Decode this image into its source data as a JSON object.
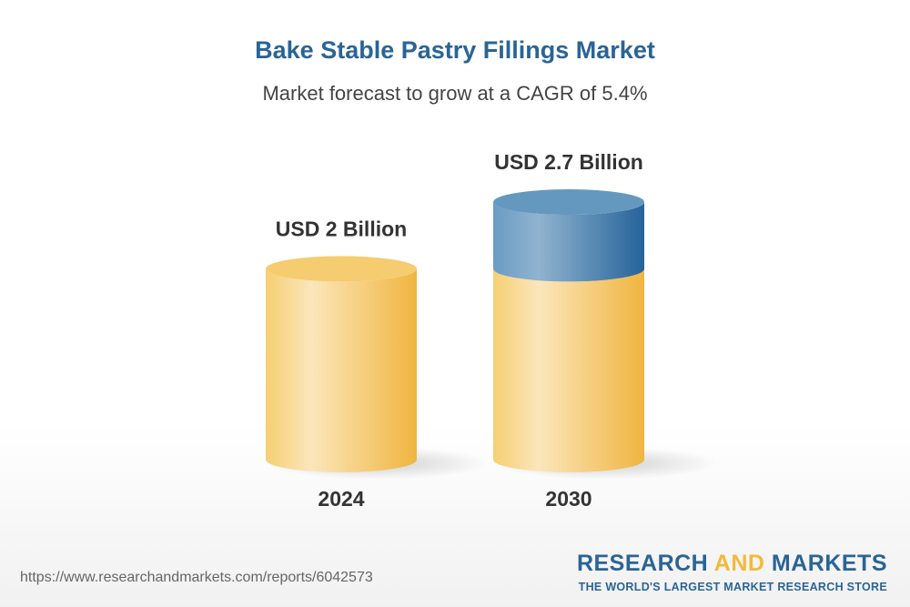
{
  "header": {
    "title": "Bake Stable Pastry Fillings Market",
    "subtitle": "Market forecast to grow at a CAGR of 5.4%"
  },
  "chart_data": {
    "type": "bar",
    "style": "3d-cylinder",
    "categories": [
      "2024",
      "2030"
    ],
    "values": [
      2,
      2.7
    ],
    "unit": "USD Billion",
    "data_labels": [
      "USD 2 Billion",
      "USD 2.7 Billion"
    ],
    "colors": {
      "base": "#f2c35a",
      "growth": "#2f6a9c"
    },
    "grid": false
  },
  "footer": {
    "url": "https://www.researchandmarkets.com/reports/6042573",
    "logo_part1": "RESEARCH ",
    "logo_part2": "AND",
    "logo_part3": " MARKETS",
    "tagline": "THE WORLD'S LARGEST MARKET RESEARCH STORE"
  }
}
